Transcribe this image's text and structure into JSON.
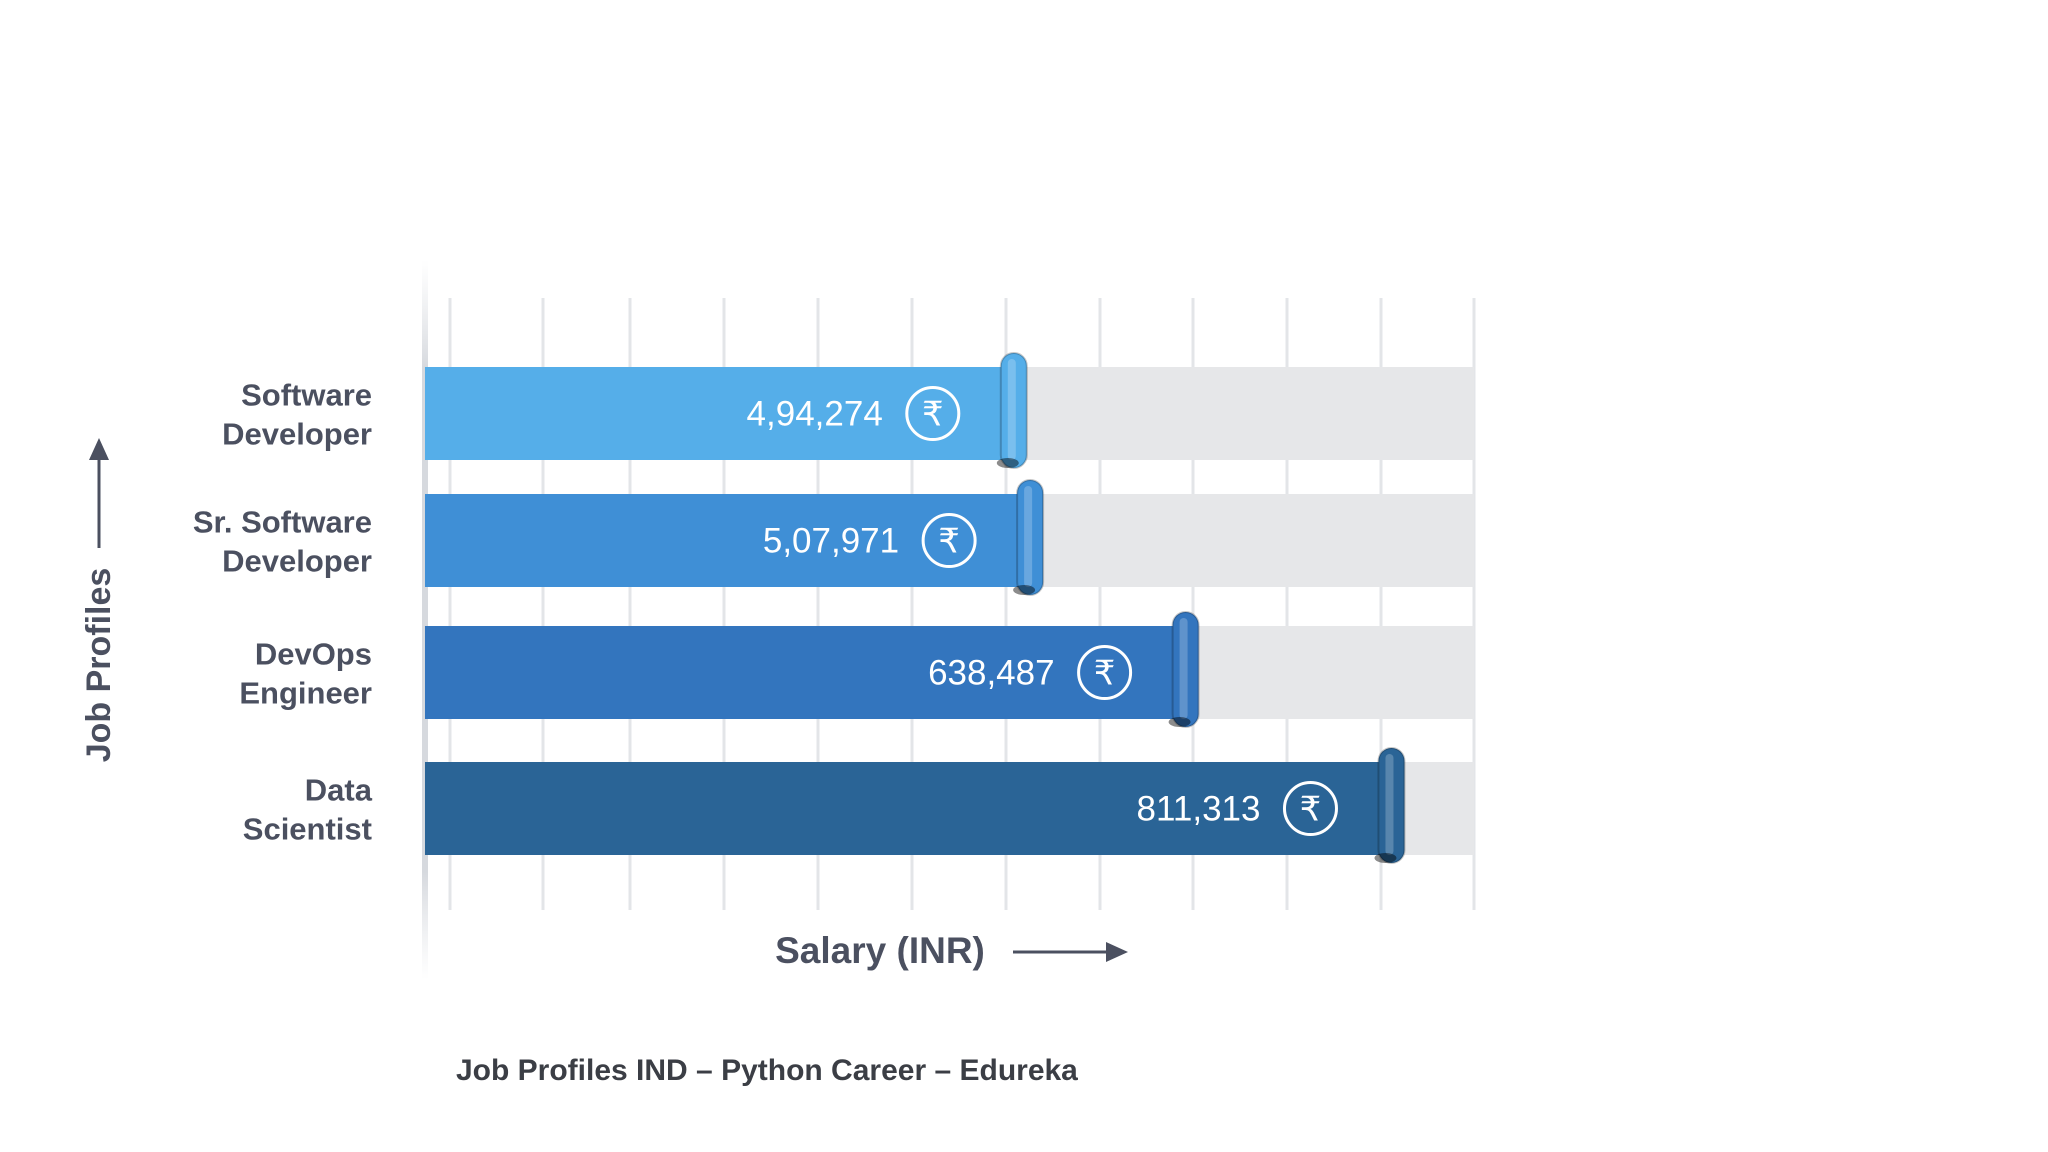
{
  "chart_data": {
    "type": "bar",
    "orientation": "horizontal",
    "categories": [
      "Software Developer",
      "Sr. Software Developer",
      "DevOps Engineer",
      "Data Scientist"
    ],
    "category_lines": [
      [
        "Software",
        "Developer"
      ],
      [
        "Sr. Software",
        "Developer"
      ],
      [
        "DevOps",
        "Engineer"
      ],
      [
        "Data",
        "Scientist"
      ]
    ],
    "values": [
      494274,
      507971,
      638487,
      811313
    ],
    "value_labels": [
      "4,94,274",
      "5,07,971",
      "638,487",
      "811,313"
    ],
    "currency_symbol": "₹",
    "bar_colors": [
      "#55aee9",
      "#3f8fd6",
      "#3375be",
      "#2a6496"
    ],
    "xlabel": "Salary (INR)",
    "ylabel": "Job Profiles",
    "grid": true,
    "legend": "none"
  },
  "caption": "Job Profiles IND – Python Career – Edureka"
}
